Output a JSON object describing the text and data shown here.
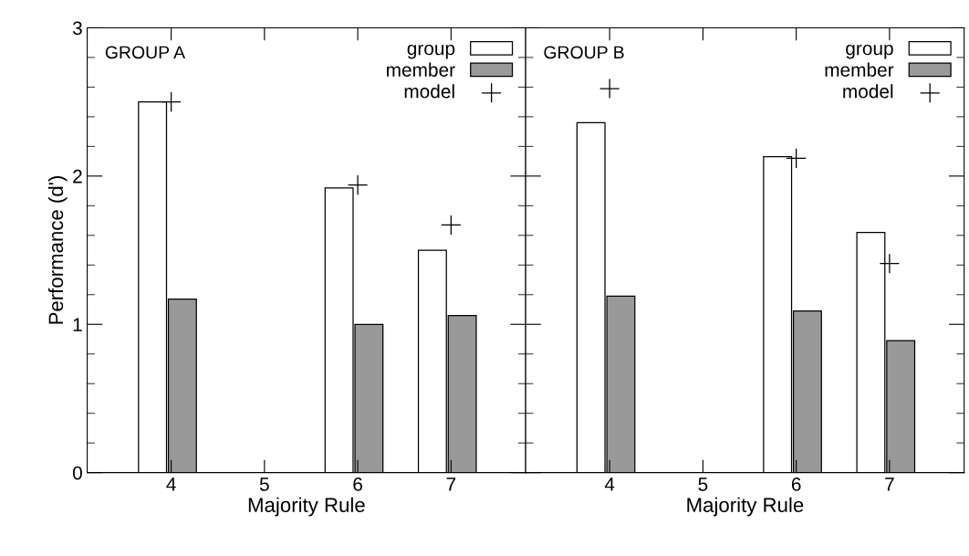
{
  "chart_data": [
    {
      "type": "bar",
      "categories": [
        "4",
        "5",
        "6",
        "7"
      ],
      "xlabel": "Majority Rule",
      "ylabel": "Performance (d')",
      "ylim": [
        0,
        3
      ],
      "yticks": [
        0,
        1,
        2,
        3
      ],
      "legend": "top right",
      "annotations": [
        "GROUP A"
      ],
      "series": [
        {
          "name": "group",
          "color": "#ffffff",
          "values": [
            2.5,
            null,
            1.92,
            1.5
          ]
        },
        {
          "name": "member",
          "color": "#999999",
          "values": [
            1.17,
            null,
            1.0,
            1.06
          ]
        },
        {
          "name": "model",
          "type": "scatter",
          "marker": "cross",
          "color": "#000000",
          "values": [
            2.5,
            null,
            1.94,
            1.67
          ]
        }
      ]
    },
    {
      "type": "bar",
      "categories": [
        "4",
        "5",
        "6",
        "7"
      ],
      "xlabel": "Majority Rule",
      "ylim": [
        0,
        3
      ],
      "yticks": [
        0,
        1,
        2,
        3
      ],
      "tick_labels": "x",
      "legend": "top right",
      "annotations": [
        "GROUP B"
      ],
      "series": [
        {
          "name": "group",
          "color": "#ffffff",
          "values": [
            2.36,
            null,
            2.13,
            1.62
          ]
        },
        {
          "name": "member",
          "color": "#999999",
          "values": [
            1.19,
            null,
            1.09,
            0.89
          ]
        },
        {
          "name": "model",
          "type": "scatter",
          "marker": "cross",
          "color": "#000000",
          "values": [
            2.59,
            null,
            2.12,
            1.41
          ]
        }
      ]
    }
  ]
}
